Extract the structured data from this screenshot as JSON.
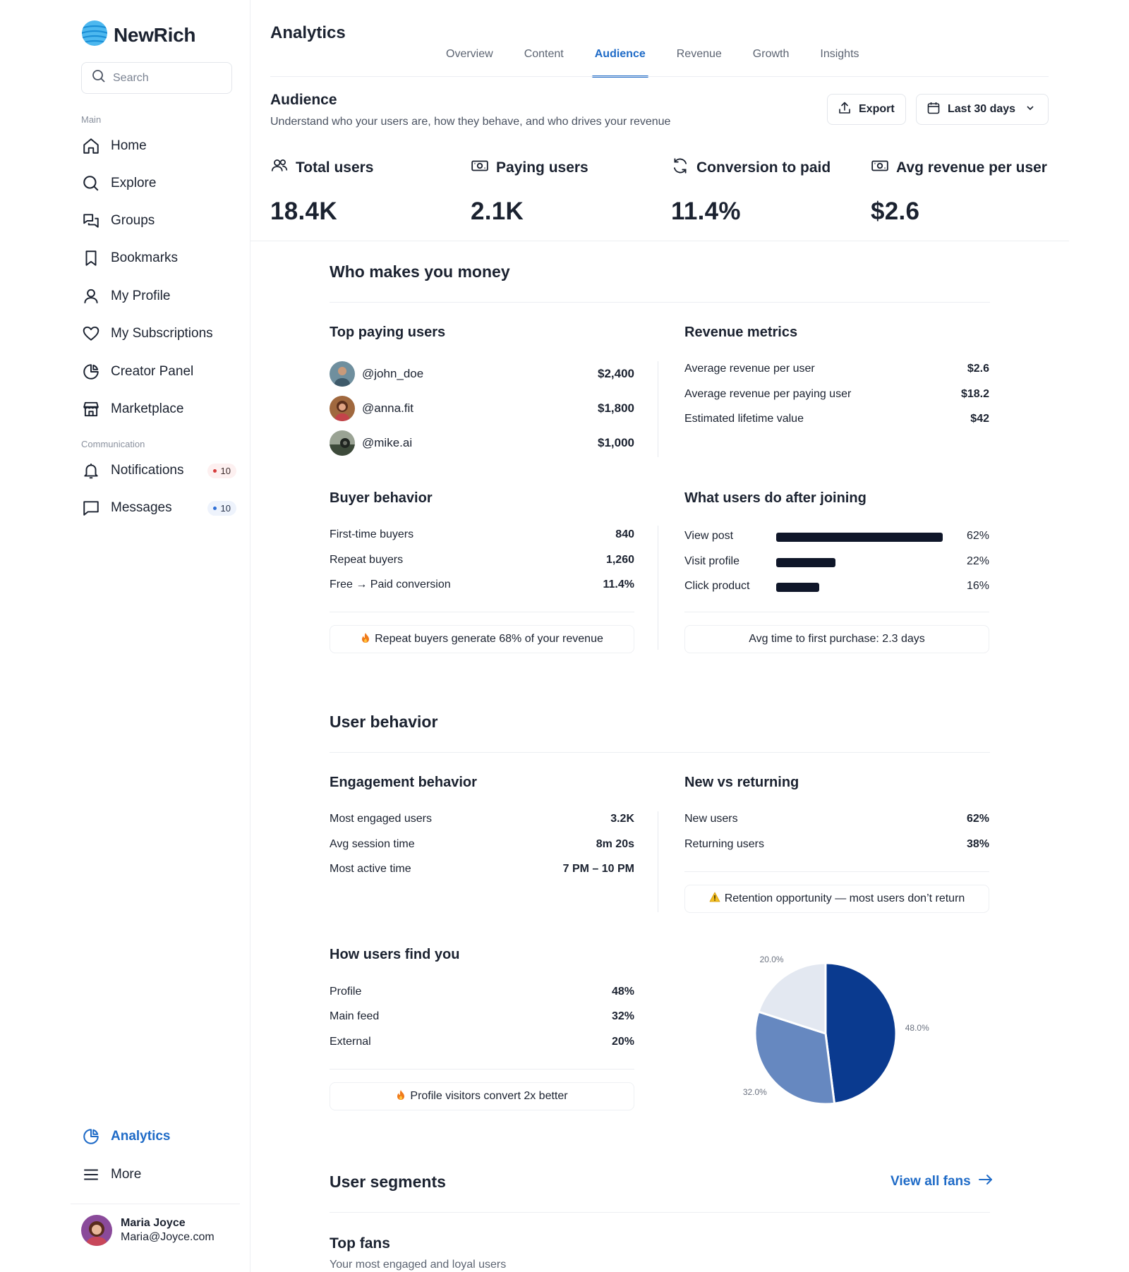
{
  "app": {
    "name": "NewRich"
  },
  "sidebar": {
    "search_placeholder": "Search",
    "main_label": "Main",
    "main_items": [
      {
        "label": "Home",
        "icon": "home-icon"
      },
      {
        "label": "Explore",
        "icon": "search-icon"
      },
      {
        "label": "Groups",
        "icon": "groups-icon"
      },
      {
        "label": "Bookmarks",
        "icon": "bookmark-icon"
      },
      {
        "label": "My Profile",
        "icon": "user-icon"
      },
      {
        "label": "My Subscriptions",
        "icon": "heart-icon"
      },
      {
        "label": "Creator Panel",
        "icon": "pie-icon"
      },
      {
        "label": "Marketplace",
        "icon": "store-icon"
      }
    ],
    "communication_label": "Communication",
    "communication_items": [
      {
        "label": "Notifications",
        "icon": "bell-icon",
        "badge": "10",
        "badge_color": "#d63b3b"
      },
      {
        "label": "Messages",
        "icon": "message-icon",
        "badge": "10",
        "badge_color": "#2f6fd6"
      }
    ],
    "bottom_items": [
      {
        "label": "Analytics",
        "icon": "analytics-icon",
        "active": true
      },
      {
        "label": "More",
        "icon": "menu-icon"
      }
    ],
    "user": {
      "name": "Maria Joyce",
      "email": "Maria@Joyce.com"
    }
  },
  "header": {
    "title": "Analytics",
    "tabs": [
      "Overview",
      "Content",
      "Audience",
      "Revenue",
      "Growth",
      "Insights"
    ],
    "active_tab": "Audience"
  },
  "audience": {
    "title": "Audience",
    "subtitle": "Understand who your users are, how they behave, and who drives your revenue",
    "export_label": "Export",
    "range_label": "Last 30 days"
  },
  "kpis": [
    {
      "label": "Total users",
      "value": "18.4K",
      "icon": "users-icon"
    },
    {
      "label": "Paying users",
      "value": "2.1K",
      "icon": "cash-icon"
    },
    {
      "label": "Conversion to paid",
      "value": "11.4%",
      "icon": "refresh-icon"
    },
    {
      "label": "Avg revenue per user",
      "value": "$2.6",
      "icon": "cash-icon"
    }
  ],
  "money": {
    "title": "Who makes you money",
    "top_paying": {
      "title": "Top paying users",
      "users": [
        {
          "handle": "@john_doe",
          "amount": "$2,400"
        },
        {
          "handle": "@anna.fit",
          "amount": "$1,800"
        },
        {
          "handle": "@mike.ai",
          "amount": "$1,000"
        }
      ]
    },
    "revenue_metrics": {
      "title": "Revenue metrics",
      "rows": [
        {
          "label": "Average revenue per user",
          "value": "$2.6"
        },
        {
          "label": "Average revenue per paying user",
          "value": "$18.2"
        },
        {
          "label": "Estimated lifetime value",
          "value": "$42"
        }
      ]
    },
    "buyer_behavior": {
      "title": "Buyer behavior",
      "rows": [
        {
          "label": "First-time buyers",
          "value": "840"
        },
        {
          "label": "Repeat buyers",
          "value": "1,260"
        },
        {
          "label": "Free → Paid conversion",
          "value": "11.4%"
        }
      ],
      "callout": "Repeat buyers generate 68% of your revenue",
      "callout_icon": "fire-icon"
    },
    "after_joining": {
      "title": "What users do after joining",
      "rows": [
        {
          "label": "View post",
          "value": "62%",
          "fraction": 0.62
        },
        {
          "label": "Visit profile",
          "value": "22%",
          "fraction": 0.22
        },
        {
          "label": "Click product",
          "value": "16%",
          "fraction": 0.16
        }
      ],
      "callout": "Avg time to first purchase: 2.3 days"
    }
  },
  "behavior": {
    "title": "User behavior",
    "engagement": {
      "title": "Engagement behavior",
      "rows": [
        {
          "label": "Most engaged users",
          "value": "3.2K"
        },
        {
          "label": "Avg session time",
          "value": "8m 20s"
        },
        {
          "label": "Most active time",
          "value": "7 PM – 10 PM"
        }
      ]
    },
    "new_vs_returning": {
      "title": "New vs returning",
      "rows": [
        {
          "label": "New users",
          "value": "62%"
        },
        {
          "label": "Returning users",
          "value": "38%"
        }
      ],
      "callout": "Retention opportunity — most users don’t return",
      "callout_icon": "warning-icon"
    },
    "find_you": {
      "title": "How users find you",
      "rows": [
        {
          "label": "Profile",
          "value": "48%"
        },
        {
          "label": "Main feed",
          "value": "32%"
        },
        {
          "label": "External",
          "value": "20%"
        }
      ],
      "callout": "Profile visitors convert 2x better",
      "callout_icon": "fire-icon"
    }
  },
  "chart_data": {
    "type": "pie",
    "categories": [
      "Profile",
      "Main feed",
      "External"
    ],
    "values": [
      48.0,
      32.0,
      20.0
    ],
    "labels": [
      "48.0%",
      "32.0%",
      "20.0%"
    ],
    "colors": [
      "#0a3a8f",
      "#6688c0",
      "#e3e8f1"
    ]
  },
  "segments": {
    "title": "User segments",
    "view_all": "View all fans",
    "top_fans_title": "Top fans",
    "top_fans_subtitle": "Your most engaged and loyal users"
  }
}
